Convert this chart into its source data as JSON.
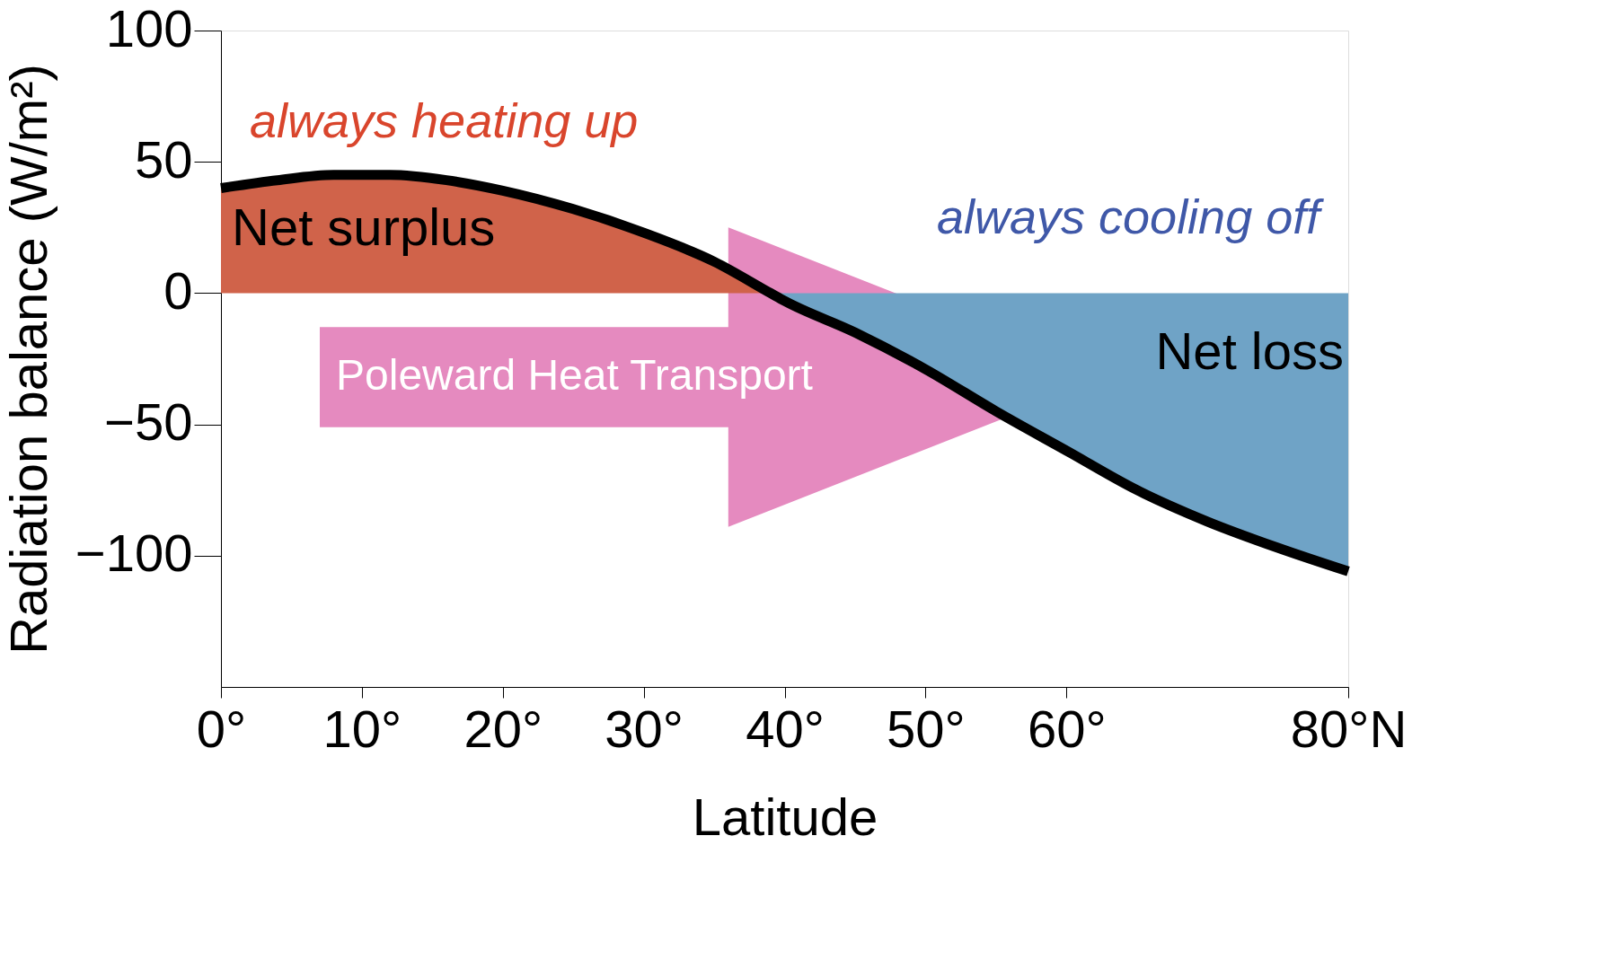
{
  "chart_data": {
    "type": "area",
    "xlabel": "Latitude",
    "ylabel": "Radiation balance (W/m²)",
    "xlim": [
      0,
      80
    ],
    "xticks": [
      {
        "value": 0,
        "label": "0°"
      },
      {
        "value": 10,
        "label": "10°"
      },
      {
        "value": 20,
        "label": "20°"
      },
      {
        "value": 30,
        "label": "30°"
      },
      {
        "value": 40,
        "label": "40°"
      },
      {
        "value": 50,
        "label": "50°"
      },
      {
        "value": 60,
        "label": "60°"
      },
      {
        "value": 80,
        "label": "80°N"
      }
    ],
    "ylim": [
      -150,
      100
    ],
    "yticks": [
      100,
      50,
      0,
      -50,
      -100
    ],
    "grid": false,
    "series": [
      {
        "name": "Net surplus",
        "color": "#d0634a",
        "x": [
          0,
          4,
          8,
          12,
          16,
          20,
          25,
          30,
          35,
          39
        ],
        "values": [
          40,
          43,
          45,
          45,
          43,
          39,
          32,
          23,
          12,
          0
        ]
      },
      {
        "name": "Net loss",
        "color": "#6fa3c6",
        "x": [
          39,
          40,
          45,
          50,
          55,
          60,
          65,
          70,
          75,
          80
        ],
        "values": [
          0,
          -3,
          -15,
          -29,
          -45,
          -60,
          -75,
          -87,
          -97,
          -106
        ]
      },
      {
        "type": "line",
        "color": "#000000",
        "x": [
          0,
          4,
          8,
          12,
          16,
          20,
          25,
          30,
          35,
          39,
          40,
          45,
          50,
          55,
          60,
          65,
          70,
          75,
          80
        ],
        "values": [
          40,
          43,
          45,
          45,
          43,
          39,
          32,
          23,
          12,
          0,
          -3,
          -15,
          -29,
          -45,
          -60,
          -75,
          -87,
          -97,
          -106
        ]
      }
    ],
    "annotations": [
      "always heating up",
      "always cooling off",
      "Poleward Heat Transport"
    ]
  }
}
